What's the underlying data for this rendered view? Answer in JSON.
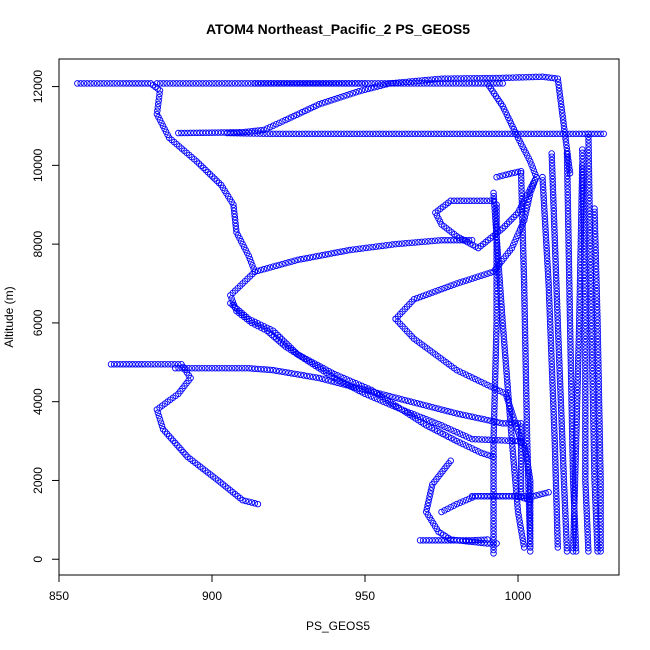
{
  "chart_data": {
    "type": "scatter",
    "title": "ATOM4 Northeast_Pacific_2 PS_GEOS5",
    "xlabel": "PS_GEOS5",
    "ylabel": "Altitude (m)",
    "xlim": [
      850,
      1033
    ],
    "ylim": [
      -400,
      12700
    ],
    "x_ticks": [
      850,
      900,
      950,
      1000
    ],
    "y_ticks": [
      0,
      2000,
      4000,
      6000,
      8000,
      10000,
      12000
    ],
    "grid": false,
    "legend": "none",
    "marker": "open-circle",
    "color": "#0000ff",
    "segments": [
      [
        [
          856,
          12080
        ],
        [
          870,
          12080
        ],
        [
          880,
          12080
        ],
        [
          883,
          11900
        ],
        [
          882,
          11300
        ],
        [
          886,
          10700
        ],
        [
          895,
          10100
        ],
        [
          903,
          9500
        ],
        [
          907,
          9000
        ],
        [
          908,
          8300
        ],
        [
          912,
          7700
        ],
        [
          914,
          7300
        ]
      ],
      [
        [
          882,
          12080
        ],
        [
          898,
          12080
        ],
        [
          916,
          12080
        ],
        [
          935,
          12080
        ],
        [
          950,
          12080
        ]
      ],
      [
        [
          914,
          12080
        ],
        [
          930,
          12080
        ],
        [
          950,
          12080
        ],
        [
          965,
          12080
        ],
        [
          985,
          12080
        ],
        [
          995,
          12080
        ]
      ],
      [
        [
          914,
          7300
        ],
        [
          928,
          7600
        ],
        [
          945,
          7850
        ],
        [
          960,
          8000
        ],
        [
          975,
          8100
        ],
        [
          985,
          8100
        ]
      ],
      [
        [
          914,
          7300
        ],
        [
          910,
          7000
        ],
        [
          906,
          6700
        ],
        [
          908,
          6300
        ],
        [
          913,
          6000
        ],
        [
          918,
          5800
        ],
        [
          924,
          5400
        ],
        [
          932,
          5000
        ],
        [
          940,
          4600
        ],
        [
          950,
          4200
        ],
        [
          962,
          3800
        ],
        [
          975,
          3400
        ],
        [
          985,
          3050
        ],
        [
          1000,
          3000
        ],
        [
          1002,
          2900
        ],
        [
          1003,
          2500
        ],
        [
          1004,
          2000
        ],
        [
          1004,
          1300
        ],
        [
          1004,
          300
        ]
      ],
      [
        [
          889,
          10820
        ],
        [
          900,
          10830
        ],
        [
          910,
          10840
        ],
        [
          917,
          10900
        ],
        [
          924,
          11150
        ],
        [
          935,
          11550
        ],
        [
          948,
          11880
        ],
        [
          958,
          12080
        ],
        [
          975,
          12200
        ],
        [
          995,
          12220
        ],
        [
          1008,
          12250
        ],
        [
          1013,
          12200
        ],
        [
          1015,
          11000
        ],
        [
          1017,
          9800
        ]
      ],
      [
        [
          905,
          10820
        ],
        [
          920,
          10800
        ],
        [
          940,
          10800
        ],
        [
          960,
          10800
        ],
        [
          980,
          10800
        ],
        [
          1000,
          10800
        ],
        [
          1020,
          10800
        ],
        [
          1028,
          10800
        ]
      ],
      [
        [
          867,
          4950
        ],
        [
          878,
          4950
        ],
        [
          890,
          4950
        ],
        [
          893,
          4600
        ],
        [
          889,
          4200
        ],
        [
          882,
          3800
        ],
        [
          884,
          3300
        ],
        [
          892,
          2600
        ],
        [
          902,
          2000
        ],
        [
          910,
          1500
        ],
        [
          915,
          1400
        ]
      ],
      [
        [
          888,
          4850
        ],
        [
          900,
          4850
        ],
        [
          912,
          4850
        ],
        [
          920,
          4800
        ],
        [
          935,
          4600
        ],
        [
          950,
          4300
        ],
        [
          965,
          4000
        ],
        [
          980,
          3700
        ],
        [
          995,
          3450
        ],
        [
          1001,
          3450
        ],
        [
          1001,
          1700
        ]
      ],
      [
        [
          906,
          6500
        ],
        [
          912,
          6100
        ],
        [
          920,
          5800
        ],
        [
          928,
          5200
        ],
        [
          940,
          4700
        ],
        [
          952,
          4300
        ],
        [
          962,
          3800
        ],
        [
          970,
          3400
        ],
        [
          980,
          3000
        ],
        [
          988,
          2700
        ],
        [
          992,
          2600
        ]
      ],
      [
        [
          960,
          6100
        ],
        [
          966,
          5600
        ],
        [
          973,
          5200
        ],
        [
          980,
          4800
        ],
        [
          988,
          4500
        ],
        [
          996,
          4200
        ],
        [
          1001,
          3000
        ]
      ],
      [
        [
          960,
          6100
        ],
        [
          966,
          6600
        ],
        [
          980,
          7000
        ],
        [
          992,
          7300
        ],
        [
          998,
          7900
        ],
        [
          1002,
          8600
        ],
        [
          1004,
          9300
        ],
        [
          1006,
          9700
        ]
      ],
      [
        [
          990,
          12080
        ],
        [
          995,
          11500
        ],
        [
          1000,
          10700
        ],
        [
          1004,
          10100
        ],
        [
          1006,
          9700
        ],
        [
          1000,
          8800
        ],
        [
          995,
          8400
        ],
        [
          987,
          7900
        ],
        [
          980,
          8200
        ],
        [
          975,
          8500
        ],
        [
          973,
          8800
        ],
        [
          978,
          9100
        ],
        [
          992,
          9100
        ]
      ],
      [
        [
          993,
          9700
        ],
        [
          998,
          9800
        ],
        [
          1001,
          9850
        ]
      ],
      [
        [
          978,
          2500
        ],
        [
          972,
          1900
        ],
        [
          970,
          1200
        ],
        [
          974,
          700
        ],
        [
          978,
          500
        ],
        [
          990,
          400
        ],
        [
          993,
          400
        ]
      ],
      [
        [
          968,
          480
        ],
        [
          975,
          480
        ],
        [
          985,
          480
        ],
        [
          990,
          500
        ]
      ],
      [
        [
          975,
          1200
        ],
        [
          980,
          1400
        ],
        [
          986,
          1600
        ],
        [
          992,
          1600
        ],
        [
          1000,
          1600
        ],
        [
          1004,
          1500
        ]
      ],
      [
        [
          985,
          1600
        ],
        [
          995,
          1600
        ],
        [
          1005,
          1600
        ],
        [
          1010,
          1700
        ]
      ],
      [
        [
          993,
          9000
        ],
        [
          993,
          6000
        ],
        [
          992,
          3000
        ],
        [
          992,
          400
        ],
        [
          992,
          150
        ]
      ],
      [
        [
          992,
          9300
        ],
        [
          995,
          6000
        ],
        [
          998,
          3000
        ],
        [
          1000,
          1200
        ],
        [
          1002,
          300
        ]
      ],
      [
        [
          1001,
          9800
        ],
        [
          1002,
          7000
        ],
        [
          1003,
          3000
        ],
        [
          1004,
          300
        ],
        [
          1004,
          200
        ]
      ],
      [
        [
          1008,
          9700
        ],
        [
          1010,
          7000
        ],
        [
          1012,
          3000
        ],
        [
          1013,
          300
        ]
      ],
      [
        [
          1011,
          10300
        ],
        [
          1013,
          6000
        ],
        [
          1015,
          2000
        ],
        [
          1016,
          200
        ]
      ],
      [
        [
          1016,
          10300
        ],
        [
          1017,
          6000
        ],
        [
          1018,
          2000
        ],
        [
          1019,
          200
        ]
      ],
      [
        [
          1021,
          10400
        ],
        [
          1022,
          6000
        ],
        [
          1022,
          2000
        ],
        [
          1023,
          200
        ]
      ],
      [
        [
          1023,
          10800
        ],
        [
          1024,
          6000
        ],
        [
          1025,
          2000
        ],
        [
          1026,
          200
        ]
      ],
      [
        [
          1025,
          8900
        ],
        [
          1026,
          6000
        ],
        [
          1027,
          2000
        ],
        [
          1027,
          200
        ]
      ],
      [
        [
          1018,
          200
        ],
        [
          1019,
          3000
        ],
        [
          1020,
          6000
        ],
        [
          1021,
          10000
        ]
      ]
    ]
  }
}
